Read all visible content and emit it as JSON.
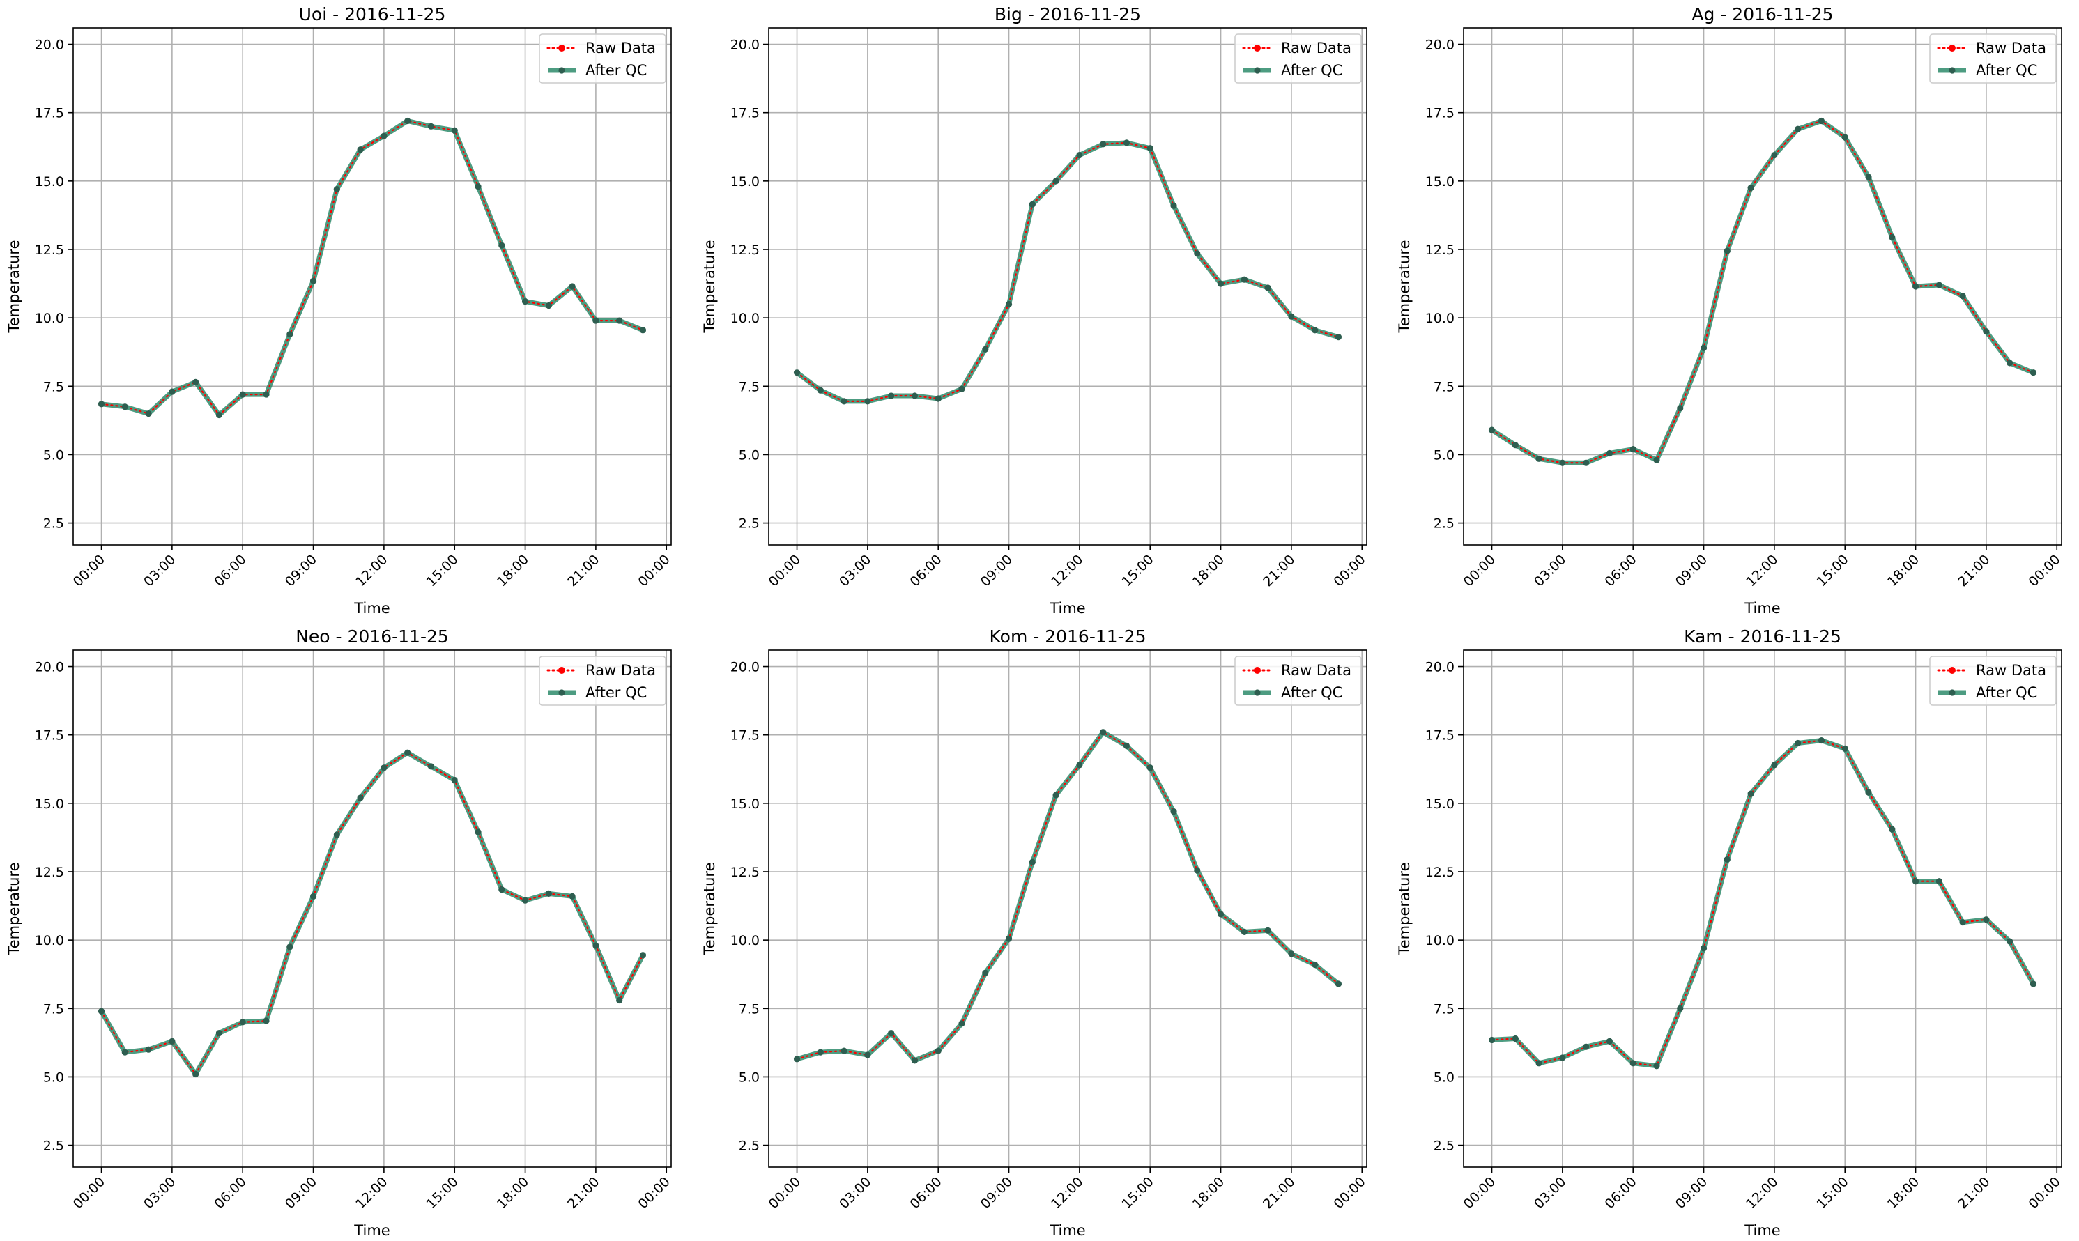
{
  "figure": {
    "raw_color": "#ff0000",
    "qc_color": "#2e8b6b",
    "point_color": "#2e5e50"
  },
  "chart_data": [
    {
      "type": "line",
      "title": "Uoi - 2016-11-25",
      "xlabel": "Time",
      "ylabel": "Temperature",
      "x_ticks": [
        "00:00",
        "03:00",
        "06:00",
        "09:00",
        "12:00",
        "15:00",
        "18:00",
        "21:00",
        "00:00"
      ],
      "x_tick_hours": [
        0,
        3,
        6,
        9,
        12,
        15,
        18,
        21,
        24
      ],
      "y_ticks": [
        "2.5",
        "5.0",
        "7.5",
        "10.0",
        "12.5",
        "15.0",
        "17.5",
        "20.0"
      ],
      "y_tick_values": [
        2.5,
        5.0,
        7.5,
        10.0,
        12.5,
        15.0,
        17.5,
        20.0
      ],
      "xlim": [
        -1.2,
        24.2
      ],
      "ylim": [
        1.7,
        20.6
      ],
      "grid": true,
      "legend_position": "upper right",
      "x_hours": [
        0,
        1,
        2,
        3,
        4,
        5,
        6,
        7,
        8,
        9,
        10,
        11,
        12,
        13,
        14,
        15,
        16,
        17,
        18,
        19,
        20,
        21,
        22,
        23
      ],
      "series": [
        {
          "name": "Raw Data",
          "values": [
            6.85,
            6.75,
            6.5,
            7.3,
            7.65,
            6.45,
            7.2,
            7.2,
            9.4,
            11.35,
            14.7,
            16.15,
            16.65,
            17.2,
            17.0,
            16.85,
            14.8,
            12.65,
            10.6,
            10.45,
            11.15,
            9.9,
            9.9,
            9.55
          ]
        },
        {
          "name": "After QC",
          "values": [
            6.85,
            6.75,
            6.5,
            7.3,
            7.65,
            6.45,
            7.2,
            7.2,
            9.4,
            11.35,
            14.7,
            16.15,
            16.65,
            17.2,
            17.0,
            16.85,
            14.8,
            12.65,
            10.6,
            10.45,
            11.15,
            9.9,
            9.9,
            9.55
          ]
        }
      ]
    },
    {
      "type": "line",
      "title": "Big - 2016-11-25",
      "xlabel": "Time",
      "ylabel": "Temperature",
      "x_ticks": [
        "00:00",
        "03:00",
        "06:00",
        "09:00",
        "12:00",
        "15:00",
        "18:00",
        "21:00",
        "00:00"
      ],
      "x_tick_hours": [
        0,
        3,
        6,
        9,
        12,
        15,
        18,
        21,
        24
      ],
      "y_ticks": [
        "2.5",
        "5.0",
        "7.5",
        "10.0",
        "12.5",
        "15.0",
        "17.5",
        "20.0"
      ],
      "y_tick_values": [
        2.5,
        5.0,
        7.5,
        10.0,
        12.5,
        15.0,
        17.5,
        20.0
      ],
      "xlim": [
        -1.2,
        24.2
      ],
      "ylim": [
        1.7,
        20.6
      ],
      "grid": true,
      "legend_position": "upper right",
      "x_hours": [
        0,
        1,
        2,
        3,
        4,
        5,
        6,
        7,
        8,
        9,
        10,
        11,
        12,
        13,
        14,
        15,
        16,
        17,
        18,
        19,
        20,
        21,
        22,
        23
      ],
      "series": [
        {
          "name": "Raw Data",
          "values": [
            8.0,
            7.35,
            6.95,
            6.95,
            7.15,
            7.15,
            7.05,
            7.4,
            8.85,
            10.5,
            14.15,
            15.0,
            15.95,
            16.35,
            16.4,
            16.2,
            14.1,
            12.35,
            11.25,
            11.4,
            11.1,
            10.05,
            9.55,
            9.3
          ]
        },
        {
          "name": "After QC",
          "values": [
            8.0,
            7.35,
            6.95,
            6.95,
            7.15,
            7.15,
            7.05,
            7.4,
            8.85,
            10.5,
            14.15,
            15.0,
            15.95,
            16.35,
            16.4,
            16.2,
            14.1,
            12.35,
            11.25,
            11.4,
            11.1,
            10.05,
            9.55,
            9.3
          ]
        }
      ]
    },
    {
      "type": "line",
      "title": "Ag - 2016-11-25",
      "xlabel": "Time",
      "ylabel": "Temperature",
      "x_ticks": [
        "00:00",
        "03:00",
        "06:00",
        "09:00",
        "12:00",
        "15:00",
        "18:00",
        "21:00",
        "00:00"
      ],
      "x_tick_hours": [
        0,
        3,
        6,
        9,
        12,
        15,
        18,
        21,
        24
      ],
      "y_ticks": [
        "2.5",
        "5.0",
        "7.5",
        "10.0",
        "12.5",
        "15.0",
        "17.5",
        "20.0"
      ],
      "y_tick_values": [
        2.5,
        5.0,
        7.5,
        10.0,
        12.5,
        15.0,
        17.5,
        20.0
      ],
      "xlim": [
        -1.2,
        24.2
      ],
      "ylim": [
        1.7,
        20.6
      ],
      "grid": true,
      "legend_position": "upper right",
      "x_hours": [
        0,
        1,
        2,
        3,
        4,
        5,
        6,
        7,
        8,
        9,
        10,
        11,
        12,
        13,
        14,
        15,
        16,
        17,
        18,
        19,
        20,
        21,
        22,
        23
      ],
      "series": [
        {
          "name": "Raw Data",
          "values": [
            5.9,
            5.35,
            4.85,
            4.7,
            4.7,
            5.05,
            5.2,
            4.8,
            6.7,
            8.9,
            12.45,
            14.75,
            15.95,
            16.9,
            17.2,
            16.6,
            15.15,
            12.95,
            11.15,
            11.2,
            10.8,
            9.5,
            8.35,
            8.0
          ]
        },
        {
          "name": "After QC",
          "values": [
            5.9,
            5.35,
            4.85,
            4.7,
            4.7,
            5.05,
            5.2,
            4.8,
            6.7,
            8.9,
            12.45,
            14.75,
            15.95,
            16.9,
            17.2,
            16.6,
            15.15,
            12.95,
            11.15,
            11.2,
            10.8,
            9.5,
            8.35,
            8.0
          ]
        }
      ]
    },
    {
      "type": "line",
      "title": "Neo - 2016-11-25",
      "xlabel": "Time",
      "ylabel": "Temperature",
      "x_ticks": [
        "00:00",
        "03:00",
        "06:00",
        "09:00",
        "12:00",
        "15:00",
        "18:00",
        "21:00",
        "00:00"
      ],
      "x_tick_hours": [
        0,
        3,
        6,
        9,
        12,
        15,
        18,
        21,
        24
      ],
      "y_ticks": [
        "2.5",
        "5.0",
        "7.5",
        "10.0",
        "12.5",
        "15.0",
        "17.5",
        "20.0"
      ],
      "y_tick_values": [
        2.5,
        5.0,
        7.5,
        10.0,
        12.5,
        15.0,
        17.5,
        20.0
      ],
      "xlim": [
        -1.2,
        24.2
      ],
      "ylim": [
        1.7,
        20.6
      ],
      "grid": true,
      "legend_position": "upper right",
      "x_hours": [
        0,
        1,
        2,
        3,
        4,
        5,
        6,
        7,
        8,
        9,
        10,
        11,
        12,
        13,
        14,
        15,
        16,
        17,
        18,
        19,
        20,
        21,
        22,
        23
      ],
      "series": [
        {
          "name": "Raw Data",
          "values": [
            7.4,
            5.9,
            6.0,
            6.3,
            5.1,
            6.6,
            7.0,
            7.05,
            9.75,
            11.6,
            13.85,
            15.2,
            16.3,
            16.85,
            16.35,
            15.85,
            13.95,
            11.85,
            11.45,
            11.7,
            11.6,
            9.8,
            7.8,
            9.45
          ]
        },
        {
          "name": "After QC",
          "values": [
            7.4,
            5.9,
            6.0,
            6.3,
            5.1,
            6.6,
            7.0,
            7.05,
            9.75,
            11.6,
            13.85,
            15.2,
            16.3,
            16.85,
            16.35,
            15.85,
            13.95,
            11.85,
            11.45,
            11.7,
            11.6,
            9.8,
            7.8,
            9.45
          ]
        }
      ]
    },
    {
      "type": "line",
      "title": "Kom - 2016-11-25",
      "xlabel": "Time",
      "ylabel": "Temperature",
      "x_ticks": [
        "00:00",
        "03:00",
        "06:00",
        "09:00",
        "12:00",
        "15:00",
        "18:00",
        "21:00",
        "00:00"
      ],
      "x_tick_hours": [
        0,
        3,
        6,
        9,
        12,
        15,
        18,
        21,
        24
      ],
      "y_ticks": [
        "2.5",
        "5.0",
        "7.5",
        "10.0",
        "12.5",
        "15.0",
        "17.5",
        "20.0"
      ],
      "y_tick_values": [
        2.5,
        5.0,
        7.5,
        10.0,
        12.5,
        15.0,
        17.5,
        20.0
      ],
      "xlim": [
        -1.2,
        24.2
      ],
      "ylim": [
        1.7,
        20.6
      ],
      "grid": true,
      "legend_position": "upper right",
      "x_hours": [
        0,
        1,
        2,
        3,
        4,
        5,
        6,
        7,
        8,
        9,
        10,
        11,
        12,
        13,
        14,
        15,
        16,
        17,
        18,
        19,
        20,
        21,
        22,
        23
      ],
      "series": [
        {
          "name": "Raw Data",
          "values": [
            5.65,
            5.9,
            5.95,
            5.8,
            6.6,
            5.6,
            5.95,
            6.95,
            8.8,
            10.05,
            12.85,
            15.3,
            16.4,
            17.6,
            17.1,
            16.3,
            14.7,
            12.55,
            10.95,
            10.3,
            10.35,
            9.5,
            9.1,
            8.4
          ]
        },
        {
          "name": "After QC",
          "values": [
            5.65,
            5.9,
            5.95,
            5.8,
            6.6,
            5.6,
            5.95,
            6.95,
            8.8,
            10.05,
            12.85,
            15.3,
            16.4,
            17.6,
            17.1,
            16.3,
            14.7,
            12.55,
            10.95,
            10.3,
            10.35,
            9.5,
            9.1,
            8.4
          ]
        }
      ]
    },
    {
      "type": "line",
      "title": "Kam - 2016-11-25",
      "xlabel": "Time",
      "ylabel": "Temperature",
      "x_ticks": [
        "00:00",
        "03:00",
        "06:00",
        "09:00",
        "12:00",
        "15:00",
        "18:00",
        "21:00",
        "00:00"
      ],
      "x_tick_hours": [
        0,
        3,
        6,
        9,
        12,
        15,
        18,
        21,
        24
      ],
      "y_ticks": [
        "2.5",
        "5.0",
        "7.5",
        "10.0",
        "12.5",
        "15.0",
        "17.5",
        "20.0"
      ],
      "y_tick_values": [
        2.5,
        5.0,
        7.5,
        10.0,
        12.5,
        15.0,
        17.5,
        20.0
      ],
      "xlim": [
        -1.2,
        24.2
      ],
      "ylim": [
        1.7,
        20.6
      ],
      "grid": true,
      "legend_position": "upper right",
      "x_hours": [
        0,
        1,
        2,
        3,
        4,
        5,
        6,
        7,
        8,
        9,
        10,
        11,
        12,
        13,
        14,
        15,
        16,
        17,
        18,
        19,
        20,
        21,
        22,
        23
      ],
      "series": [
        {
          "name": "Raw Data",
          "values": [
            6.35,
            6.4,
            5.5,
            5.7,
            6.1,
            6.3,
            5.5,
            5.4,
            7.5,
            9.7,
            12.95,
            15.35,
            16.4,
            17.2,
            17.3,
            17.0,
            15.4,
            14.05,
            12.15,
            12.15,
            10.65,
            10.75,
            9.95,
            8.4
          ]
        },
        {
          "name": "After QC",
          "values": [
            6.35,
            6.4,
            5.5,
            5.7,
            6.1,
            6.3,
            5.5,
            5.4,
            7.5,
            9.7,
            12.95,
            15.35,
            16.4,
            17.2,
            17.3,
            17.0,
            15.4,
            14.05,
            12.15,
            12.15,
            10.65,
            10.75,
            9.95,
            8.4
          ]
        }
      ]
    }
  ]
}
